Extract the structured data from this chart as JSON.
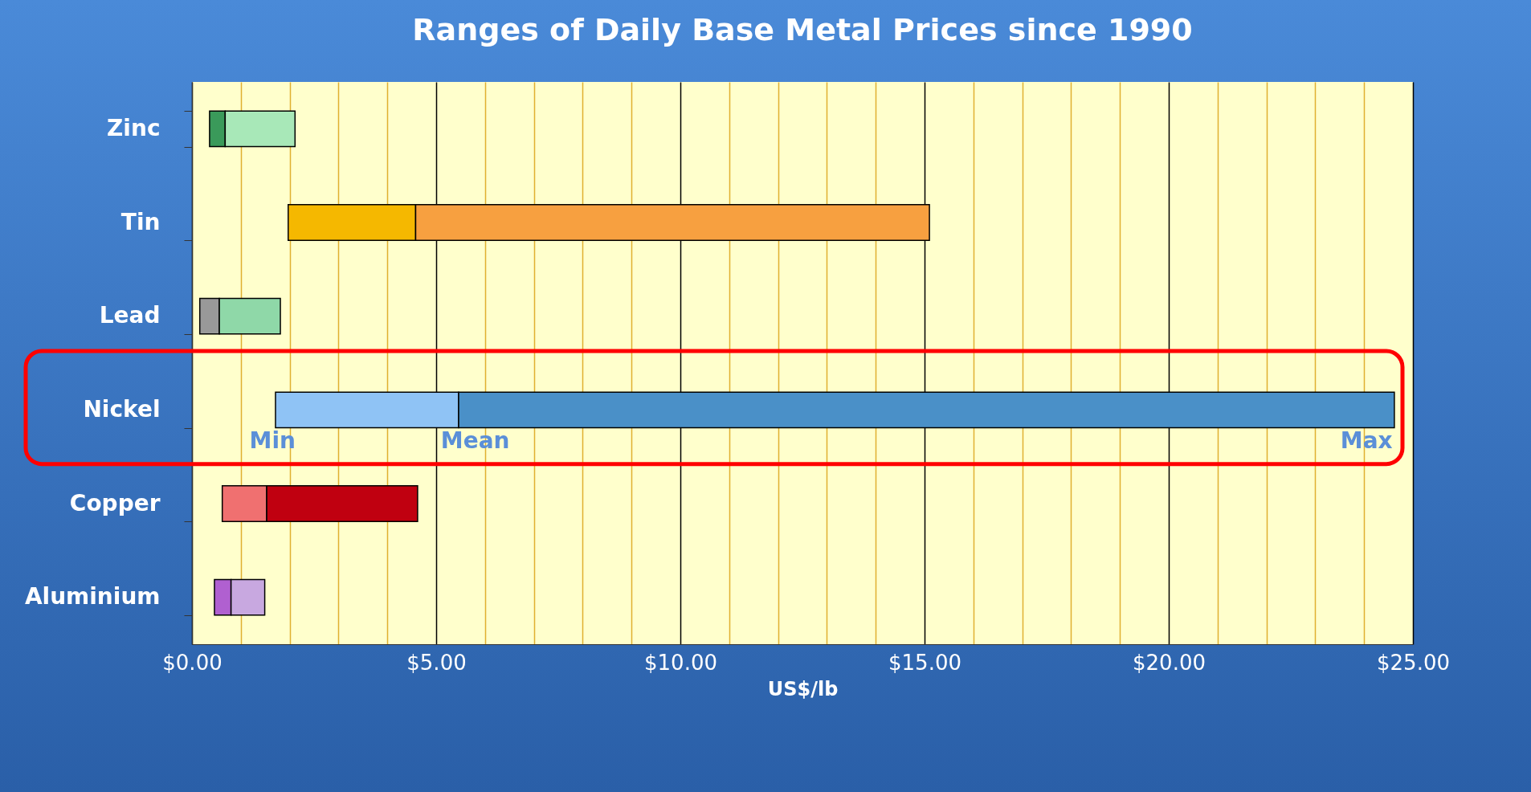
{
  "chart_data": {
    "type": "bar",
    "orientation": "horizontal",
    "title": "Ranges of Daily Base Metal Prices since 1990",
    "xlabel": "US$/lb",
    "categories": [
      "Zinc",
      "Tin",
      "Lead",
      "Nickel",
      "Copper",
      "Aluminium"
    ],
    "series": [
      {
        "colors": [
          "#3a9a5a",
          "#f5b800",
          "#999999",
          "#8fc3f5",
          "#f07070",
          "#b060d0"
        ],
        "base": [
          0.36,
          1.97,
          0.16,
          1.71,
          0.62,
          0.46
        ],
        "values": [
          0.32,
          2.61,
          0.4,
          3.75,
          0.91,
          0.34
        ]
      },
      {
        "colors": [
          "#a8e8b8",
          "#f7a040",
          "#8fd8a8",
          "#4a90c8",
          "#c00010",
          "#c8a8e0"
        ],
        "base": [
          0.68,
          4.58,
          0.56,
          5.46,
          1.53,
          0.8
        ],
        "values": [
          1.43,
          10.52,
          1.25,
          19.16,
          3.09,
          0.69
        ]
      }
    ],
    "xlim": [
      0,
      25
    ],
    "xticks": [
      {
        "value": 0,
        "label": "$0.00"
      },
      {
        "value": 1,
        "label": null
      },
      {
        "value": 2,
        "label": null
      },
      {
        "value": 3,
        "label": null
      },
      {
        "value": 4,
        "label": null
      },
      {
        "value": 5,
        "label": "$5.00"
      },
      {
        "value": 6,
        "label": null
      },
      {
        "value": 7,
        "label": null
      },
      {
        "value": 8,
        "label": null
      },
      {
        "value": 9,
        "label": null
      },
      {
        "value": 10,
        "label": "$10.00"
      },
      {
        "value": 11,
        "label": null
      },
      {
        "value": 12,
        "label": null
      },
      {
        "value": 13,
        "label": null
      },
      {
        "value": 14,
        "label": null
      },
      {
        "value": 15,
        "label": "$15.00"
      },
      {
        "value": 16,
        "label": null
      },
      {
        "value": 17,
        "label": null
      },
      {
        "value": 18,
        "label": null
      },
      {
        "value": 19,
        "label": null
      },
      {
        "value": 20,
        "label": "$20.00"
      },
      {
        "value": 21,
        "label": null
      },
      {
        "value": 22,
        "label": null
      },
      {
        "value": 23,
        "label": null
      },
      {
        "value": 24,
        "label": null
      },
      {
        "value": 25,
        "label": "$25.00"
      }
    ],
    "grid": "x",
    "annotations": [
      "Min",
      "Mean",
      "Max"
    ]
  }
}
